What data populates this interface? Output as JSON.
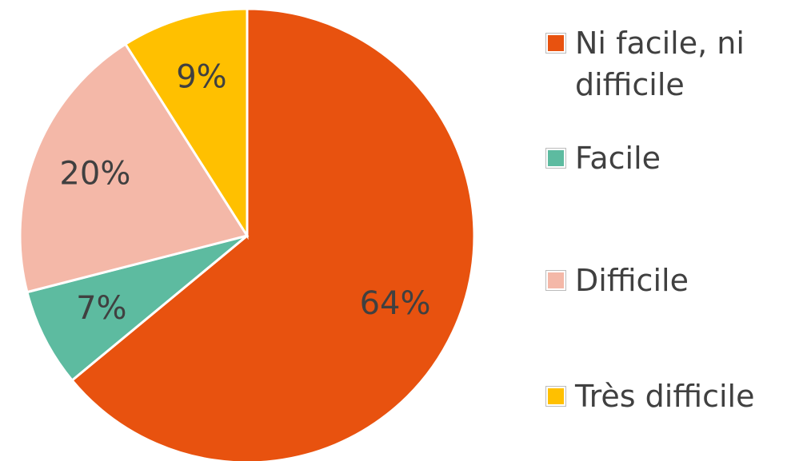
{
  "chart_data": {
    "type": "pie",
    "categories": [
      "Ni facile, ni difficile",
      "Facile",
      "Difficile",
      "Très difficile"
    ],
    "values": [
      64,
      7,
      20,
      9
    ],
    "value_labels": [
      "64%",
      "7%",
      "20%",
      "9%"
    ],
    "colors": [
      "#E8520F",
      "#5DBBA0",
      "#F4B8A8",
      "#FFC000"
    ],
    "legend": "right"
  }
}
